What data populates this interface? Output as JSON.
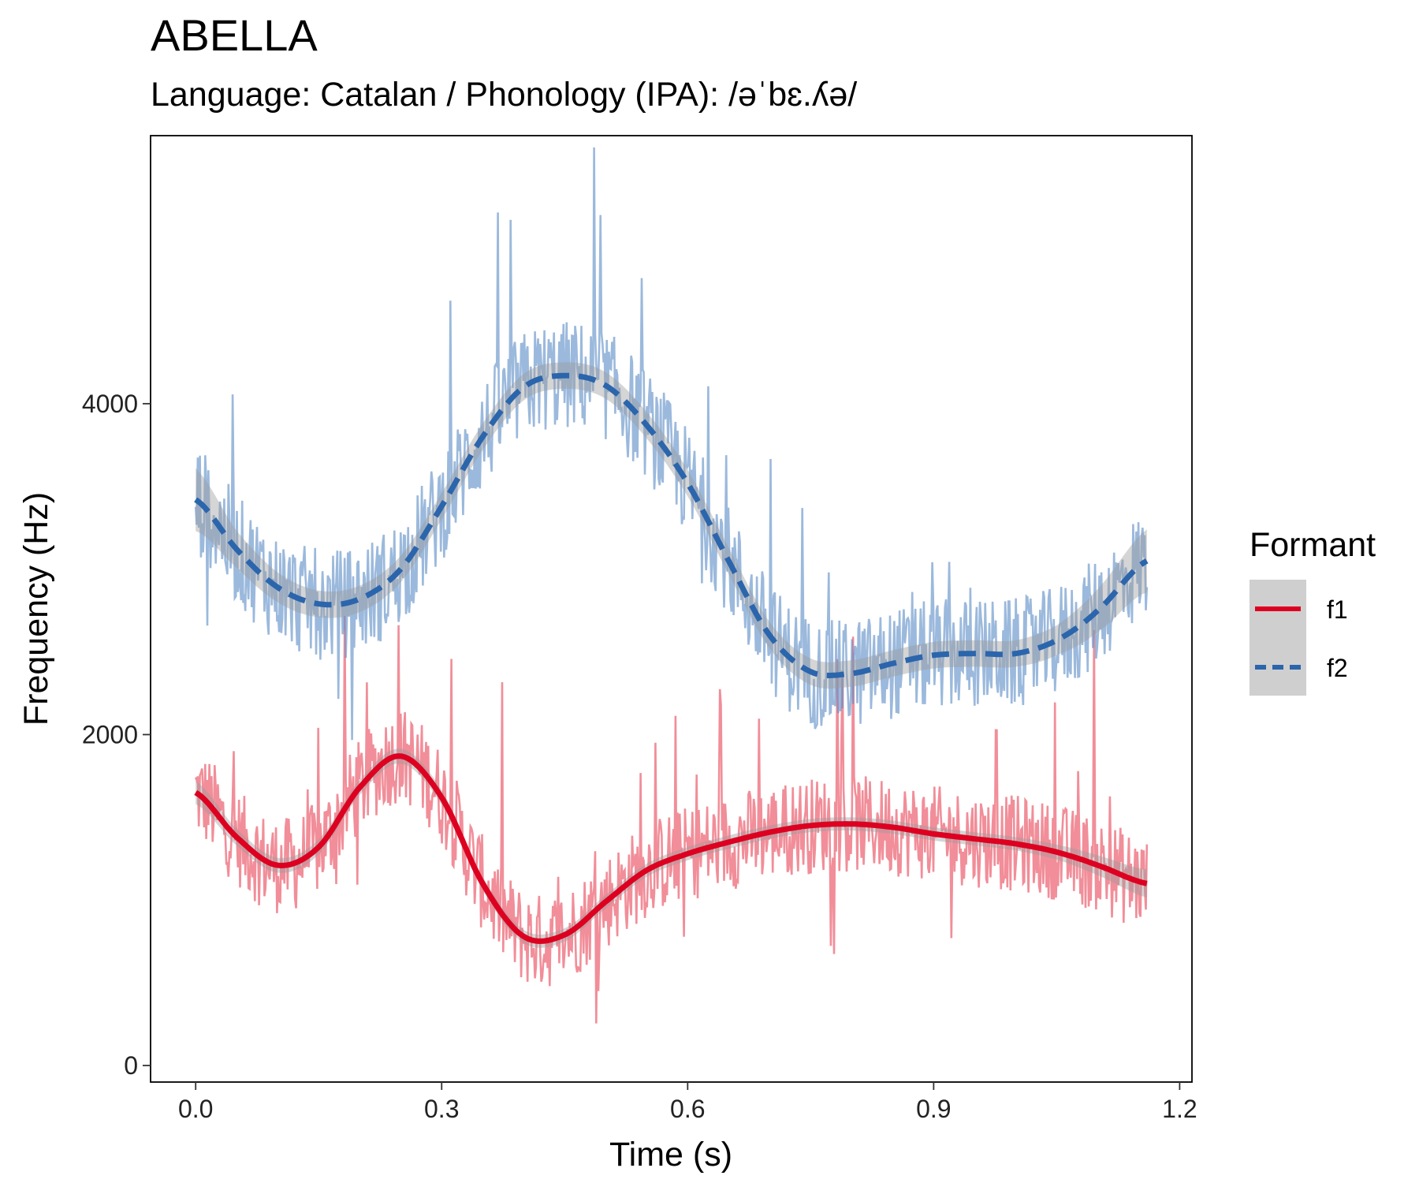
{
  "chart_data": {
    "type": "line",
    "title": "ABELLA",
    "subtitle": "Language: Catalan / Phonology (IPA): /əˈbɛ.ʎə/",
    "xlabel": "Time (s)",
    "ylabel": "Frequency (Hz)",
    "xlim": [
      -0.055,
      1.215
    ],
    "ylim": [
      -100,
      5620
    ],
    "x_ticks": [
      0.0,
      0.3,
      0.6,
      0.9,
      1.2
    ],
    "x_tick_labels": [
      "0.0",
      "0.3",
      "0.6",
      "0.9",
      "1.2"
    ],
    "y_ticks": [
      0,
      2000,
      4000
    ],
    "y_tick_labels": [
      "0",
      "2000",
      "4000"
    ],
    "grid": false,
    "legend_title": "Formant",
    "legend_position": "right",
    "series": [
      {
        "name": "f1",
        "color": "#DD0020",
        "raw_color": "#E8495A",
        "line_style": "solid",
        "x": [
          0.0,
          0.05,
          0.1,
          0.15,
          0.2,
          0.25,
          0.3,
          0.35,
          0.4,
          0.45,
          0.5,
          0.55,
          0.6,
          0.65,
          0.7,
          0.75,
          0.8,
          0.85,
          0.9,
          0.95,
          1.0,
          1.05,
          1.1,
          1.16
        ],
        "smooth": [
          1650,
          1380,
          1210,
          1320,
          1680,
          1870,
          1620,
          1100,
          780,
          790,
          990,
          1180,
          1280,
          1350,
          1410,
          1450,
          1460,
          1440,
          1400,
          1370,
          1340,
          1290,
          1210,
          1100
        ],
        "band": [
          70,
          50,
          45,
          45,
          45,
          45,
          45,
          40,
          40,
          40,
          40,
          40,
          40,
          40,
          40,
          40,
          40,
          40,
          40,
          40,
          40,
          45,
          60,
          85
        ]
      },
      {
        "name": "f2",
        "color": "#2B65AC",
        "raw_color": "#5E8EC6",
        "line_style": "dashed",
        "x": [
          0.0,
          0.05,
          0.1,
          0.15,
          0.2,
          0.25,
          0.3,
          0.35,
          0.4,
          0.45,
          0.5,
          0.55,
          0.6,
          0.65,
          0.7,
          0.75,
          0.8,
          0.85,
          0.9,
          0.95,
          1.0,
          1.05,
          1.1,
          1.16
        ],
        "smooth": [
          3420,
          3120,
          2890,
          2790,
          2820,
          3000,
          3380,
          3800,
          4100,
          4170,
          4110,
          3870,
          3520,
          3050,
          2600,
          2380,
          2370,
          2430,
          2480,
          2490,
          2490,
          2570,
          2750,
          3050
        ],
        "band": [
          190,
          110,
          90,
          80,
          80,
          80,
          80,
          80,
          80,
          80,
          80,
          80,
          80,
          80,
          80,
          80,
          80,
          80,
          80,
          80,
          80,
          90,
          130,
          190
        ]
      }
    ]
  }
}
